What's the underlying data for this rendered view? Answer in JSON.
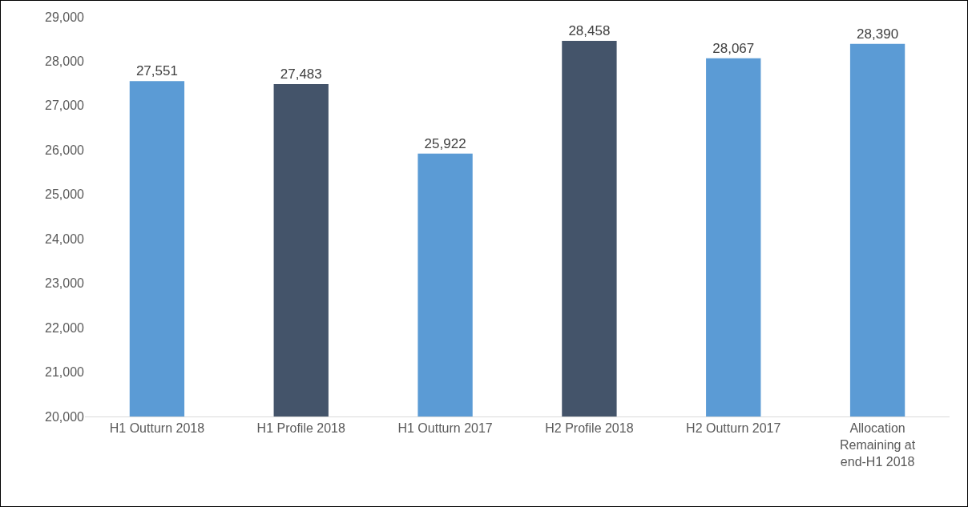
{
  "chart_data": {
    "type": "bar",
    "categories": [
      "H1 Outturn 2018",
      "H1 Profile 2018",
      "H1 Outturn 2017",
      "H2 Profile 2018",
      "H2 Outturn 2017",
      "Allocation Remaining at end-H1 2018"
    ],
    "values": [
      27551,
      27483,
      25922,
      28458,
      28067,
      28390
    ],
    "colors": [
      "#5b9bd5",
      "#44546a",
      "#5b9bd5",
      "#44546a",
      "#5b9bd5",
      "#5b9bd5"
    ],
    "ylim": [
      20000,
      29000
    ],
    "yticks": [
      {
        "value": 20000,
        "label": "20,000"
      },
      {
        "value": 21000,
        "label": "21,000"
      },
      {
        "value": 22000,
        "label": "22,000"
      },
      {
        "value": 23000,
        "label": "23,000"
      },
      {
        "value": 24000,
        "label": "24,000"
      },
      {
        "value": 25000,
        "label": "25,000"
      },
      {
        "value": 26000,
        "label": "26,000"
      },
      {
        "value": 27000,
        "label": "27,000"
      },
      {
        "value": 28000,
        "label": "28,000"
      },
      {
        "value": 29000,
        "label": "29,000"
      }
    ],
    "value_labels": [
      "27,551",
      "27,483",
      "25,922",
      "28,458",
      "28,067",
      "28,390"
    ],
    "grid": false,
    "legend": false
  }
}
